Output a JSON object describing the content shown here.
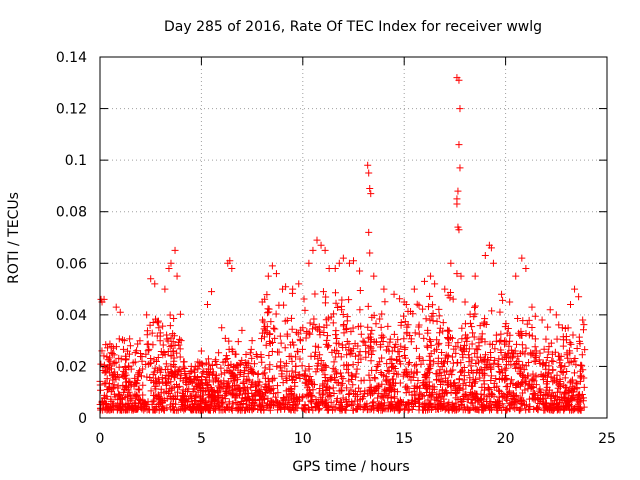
{
  "chart_data": {
    "type": "scatter",
    "title": "Day 285 of 2016, Rate Of TEC Index for receiver wwlg",
    "xlabel": "GPS time / hours",
    "ylabel": "ROTI / TECUs",
    "xlim": [
      0,
      25
    ],
    "ylim": [
      0,
      0.14
    ],
    "xticks": [
      0,
      5,
      10,
      15,
      20,
      25
    ],
    "yticks": [
      0,
      0.02,
      0.04,
      0.06,
      0.08,
      0.1,
      0.12,
      0.14
    ],
    "xtick_labels": [
      "0",
      "5",
      "10",
      "15",
      "20",
      "25"
    ],
    "ytick_labels": [
      "0",
      "0.02",
      "0.04",
      "0.06",
      "0.08",
      "0.1",
      "0.12",
      "0.14"
    ],
    "grid": true,
    "marker": "+",
    "series": [
      {
        "name": "ROTI",
        "color": "#ff0000",
        "points": [
          [
            0.05,
            0.046
          ],
          [
            0.1,
            0.045
          ],
          [
            0.2,
            0.046
          ],
          [
            0.3,
            0.018
          ],
          [
            0.5,
            0.022
          ],
          [
            0.8,
            0.043
          ],
          [
            1.0,
            0.041
          ],
          [
            1.2,
            0.03
          ],
          [
            1.5,
            0.028
          ],
          [
            2.0,
            0.025
          ],
          [
            2.3,
            0.04
          ],
          [
            2.5,
            0.054
          ],
          [
            2.7,
            0.052
          ],
          [
            2.9,
            0.035
          ],
          [
            3.2,
            0.05
          ],
          [
            3.4,
            0.058
          ],
          [
            3.5,
            0.06
          ],
          [
            3.7,
            0.065
          ],
          [
            3.8,
            0.055
          ],
          [
            4.0,
            0.03
          ],
          [
            4.5,
            0.02
          ],
          [
            5.0,
            0.026
          ],
          [
            5.3,
            0.044
          ],
          [
            5.5,
            0.049
          ],
          [
            6.0,
            0.035
          ],
          [
            6.3,
            0.06
          ],
          [
            6.4,
            0.061
          ],
          [
            6.5,
            0.058
          ],
          [
            7.0,
            0.034
          ],
          [
            7.5,
            0.03
          ],
          [
            8.0,
            0.045
          ],
          [
            8.3,
            0.055
          ],
          [
            8.5,
            0.059
          ],
          [
            8.7,
            0.056
          ],
          [
            9.0,
            0.05
          ],
          [
            9.5,
            0.05
          ],
          [
            9.8,
            0.052
          ],
          [
            10.0,
            0.035
          ],
          [
            10.3,
            0.06
          ],
          [
            10.5,
            0.065
          ],
          [
            10.7,
            0.069
          ],
          [
            10.9,
            0.067
          ],
          [
            11.1,
            0.065
          ],
          [
            11.3,
            0.058
          ],
          [
            11.6,
            0.058
          ],
          [
            11.8,
            0.06
          ],
          [
            12.0,
            0.062
          ],
          [
            12.3,
            0.06
          ],
          [
            12.5,
            0.061
          ],
          [
            12.8,
            0.057
          ],
          [
            13.2,
            0.098
          ],
          [
            13.25,
            0.095
          ],
          [
            13.3,
            0.089
          ],
          [
            13.35,
            0.087
          ],
          [
            13.25,
            0.072
          ],
          [
            13.3,
            0.064
          ],
          [
            13.5,
            0.055
          ],
          [
            14.0,
            0.05
          ],
          [
            14.5,
            0.048
          ],
          [
            15.0,
            0.045
          ],
          [
            15.5,
            0.05
          ],
          [
            16.0,
            0.053
          ],
          [
            16.3,
            0.055
          ],
          [
            16.5,
            0.052
          ],
          [
            17.0,
            0.05
          ],
          [
            17.3,
            0.06
          ],
          [
            17.6,
            0.132
          ],
          [
            17.7,
            0.131
          ],
          [
            17.75,
            0.12
          ],
          [
            17.7,
            0.106
          ],
          [
            17.75,
            0.097
          ],
          [
            17.65,
            0.088
          ],
          [
            17.6,
            0.085
          ],
          [
            17.6,
            0.083
          ],
          [
            17.65,
            0.074
          ],
          [
            17.7,
            0.073
          ],
          [
            17.6,
            0.056
          ],
          [
            17.8,
            0.055
          ],
          [
            18.0,
            0.045
          ],
          [
            18.5,
            0.055
          ],
          [
            19.0,
            0.063
          ],
          [
            19.2,
            0.067
          ],
          [
            19.3,
            0.066
          ],
          [
            19.4,
            0.06
          ],
          [
            19.8,
            0.048
          ],
          [
            20.2,
            0.045
          ],
          [
            20.5,
            0.055
          ],
          [
            20.8,
            0.062
          ],
          [
            21.0,
            0.058
          ],
          [
            21.3,
            0.043
          ],
          [
            21.8,
            0.038
          ],
          [
            22.2,
            0.042
          ],
          [
            22.5,
            0.04
          ],
          [
            22.8,
            0.035
          ],
          [
            23.2,
            0.044
          ],
          [
            23.4,
            0.05
          ],
          [
            23.6,
            0.047
          ],
          [
            23.8,
            0.038
          ]
        ],
        "dense_band": {
          "x_range": [
            0,
            23.9
          ],
          "y_floor": 0.003,
          "y_typical_max": 0.035,
          "approx_count": 2600
        }
      }
    ]
  }
}
